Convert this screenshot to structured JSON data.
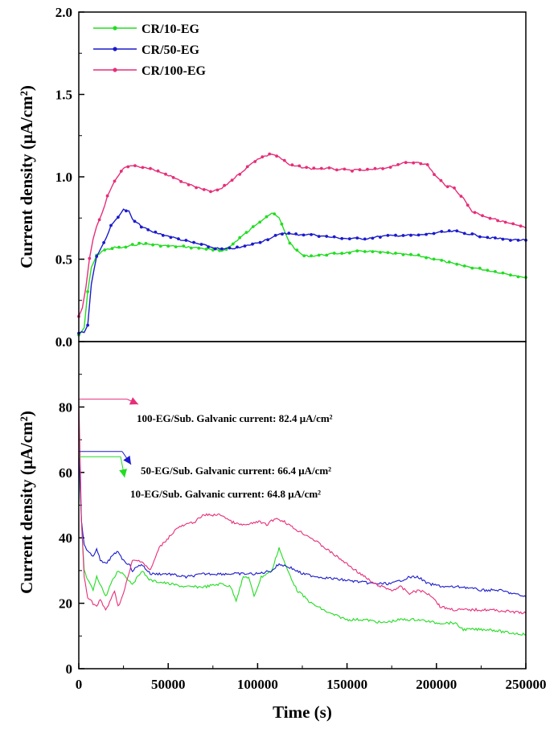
{
  "chart_data": [
    {
      "type": "line",
      "panel": "top",
      "ylabel": "Current density (μA/cm²)",
      "xlabel": "",
      "xlim": [
        0,
        250000
      ],
      "ylim": [
        0,
        2.0
      ],
      "yticks": [
        "0.0",
        "0.5",
        "1.0",
        "1.5",
        "2.0"
      ],
      "yticks_values": [
        0,
        0.5,
        1.0,
        1.5,
        2.0
      ],
      "legend_position": "top-left",
      "series": [
        {
          "name": "CR/10-EG",
          "color": "#22dd22",
          "points": [
            [
              0,
              0.04
            ],
            [
              3000,
              0.08
            ],
            [
              5000,
              0.3
            ],
            [
              7000,
              0.45
            ],
            [
              10000,
              0.52
            ],
            [
              13000,
              0.55
            ],
            [
              16000,
              0.56
            ],
            [
              20000,
              0.57
            ],
            [
              25000,
              0.57
            ],
            [
              30000,
              0.585
            ],
            [
              35000,
              0.595
            ],
            [
              40000,
              0.59
            ],
            [
              50000,
              0.58
            ],
            [
              60000,
              0.575
            ],
            [
              70000,
              0.565
            ],
            [
              75000,
              0.555
            ],
            [
              80000,
              0.55
            ],
            [
              85000,
              0.58
            ],
            [
              90000,
              0.63
            ],
            [
              95000,
              0.67
            ],
            [
              100000,
              0.72
            ],
            [
              105000,
              0.76
            ],
            [
              108000,
              0.78
            ],
            [
              112000,
              0.75
            ],
            [
              115000,
              0.67
            ],
            [
              118000,
              0.6
            ],
            [
              122000,
              0.55
            ],
            [
              126000,
              0.52
            ],
            [
              130000,
              0.52
            ],
            [
              140000,
              0.53
            ],
            [
              150000,
              0.54
            ],
            [
              160000,
              0.55
            ],
            [
              170000,
              0.54
            ],
            [
              180000,
              0.53
            ],
            [
              190000,
              0.52
            ],
            [
              200000,
              0.5
            ],
            [
              210000,
              0.47
            ],
            [
              220000,
              0.45
            ],
            [
              230000,
              0.43
            ],
            [
              240000,
              0.41
            ],
            [
              250000,
              0.39
            ]
          ]
        },
        {
          "name": "CR/50-EG",
          "color": "#1a1acc",
          "points": [
            [
              0,
              0.05
            ],
            [
              3000,
              0.06
            ],
            [
              5000,
              0.1
            ],
            [
              7000,
              0.35
            ],
            [
              10000,
              0.52
            ],
            [
              14000,
              0.6
            ],
            [
              18000,
              0.7
            ],
            [
              22000,
              0.76
            ],
            [
              25000,
              0.8
            ],
            [
              28000,
              0.79
            ],
            [
              30000,
              0.74
            ],
            [
              35000,
              0.7
            ],
            [
              40000,
              0.67
            ],
            [
              50000,
              0.64
            ],
            [
              60000,
              0.61
            ],
            [
              70000,
              0.585
            ],
            [
              75000,
              0.57
            ],
            [
              80000,
              0.56
            ],
            [
              90000,
              0.57
            ],
            [
              100000,
              0.6
            ],
            [
              110000,
              0.64
            ],
            [
              115000,
              0.66
            ],
            [
              120000,
              0.65
            ],
            [
              130000,
              0.65
            ],
            [
              140000,
              0.635
            ],
            [
              150000,
              0.625
            ],
            [
              160000,
              0.625
            ],
            [
              170000,
              0.64
            ],
            [
              180000,
              0.645
            ],
            [
              190000,
              0.645
            ],
            [
              200000,
              0.66
            ],
            [
              210000,
              0.67
            ],
            [
              220000,
              0.65
            ],
            [
              230000,
              0.63
            ],
            [
              240000,
              0.62
            ],
            [
              250000,
              0.615
            ]
          ]
        },
        {
          "name": "CR/100-EG",
          "color": "#e62e7a",
          "points": [
            [
              0,
              0.15
            ],
            [
              2000,
              0.2
            ],
            [
              4000,
              0.33
            ],
            [
              6000,
              0.5
            ],
            [
              8000,
              0.62
            ],
            [
              10000,
              0.7
            ],
            [
              13000,
              0.78
            ],
            [
              16000,
              0.88
            ],
            [
              20000,
              0.97
            ],
            [
              25000,
              1.05
            ],
            [
              30000,
              1.07
            ],
            [
              40000,
              1.05
            ],
            [
              50000,
              1.01
            ],
            [
              60000,
              0.96
            ],
            [
              70000,
              0.92
            ],
            [
              75000,
              0.91
            ],
            [
              80000,
              0.93
            ],
            [
              90000,
              1.02
            ],
            [
              100000,
              1.11
            ],
            [
              108000,
              1.14
            ],
            [
              112000,
              1.12
            ],
            [
              118000,
              1.07
            ],
            [
              130000,
              1.05
            ],
            [
              140000,
              1.05
            ],
            [
              150000,
              1.04
            ],
            [
              160000,
              1.04
            ],
            [
              170000,
              1.05
            ],
            [
              180000,
              1.08
            ],
            [
              190000,
              1.09
            ],
            [
              195000,
              1.07
            ],
            [
              200000,
              1.0
            ],
            [
              205000,
              0.95
            ],
            [
              210000,
              0.93
            ],
            [
              215000,
              0.87
            ],
            [
              220000,
              0.79
            ],
            [
              230000,
              0.75
            ],
            [
              240000,
              0.72
            ],
            [
              250000,
              0.69
            ]
          ]
        }
      ]
    },
    {
      "type": "line",
      "panel": "bottom",
      "ylabel": "Current density (μA/cm²)",
      "xlabel": "Time (s)",
      "xlim": [
        0,
        250000
      ],
      "ylim": [
        0,
        100
      ],
      "yticks": [
        "0",
        "20",
        "40",
        "60",
        "80"
      ],
      "yticks_values": [
        0,
        20,
        40,
        60,
        80
      ],
      "xticks": [
        "0",
        "50000",
        "100000",
        "150000",
        "200000",
        "250000"
      ],
      "xticks_values": [
        0,
        50000,
        100000,
        150000,
        200000,
        250000
      ],
      "series": [
        {
          "name": "10-EG/Sub.",
          "color": "#22dd22",
          "points": [
            [
              0,
              64.8
            ],
            [
              1500,
              45
            ],
            [
              3000,
              30
            ],
            [
              5000,
              27
            ],
            [
              8000,
              24
            ],
            [
              10000,
              28
            ],
            [
              12000,
              26
            ],
            [
              15000,
              22
            ],
            [
              18000,
              26
            ],
            [
              22000,
              30
            ],
            [
              25000,
              29
            ],
            [
              28000,
              27
            ],
            [
              30000,
              26
            ],
            [
              33000,
              28
            ],
            [
              35000,
              30
            ],
            [
              40000,
              27
            ],
            [
              50000,
              26
            ],
            [
              60000,
              25
            ],
            [
              70000,
              25
            ],
            [
              80000,
              26
            ],
            [
              85000,
              25
            ],
            [
              88000,
              21
            ],
            [
              92000,
              28
            ],
            [
              95000,
              28
            ],
            [
              98000,
              22
            ],
            [
              102000,
              28
            ],
            [
              108000,
              30
            ],
            [
              112000,
              37
            ],
            [
              116000,
              31
            ],
            [
              122000,
              24
            ],
            [
              130000,
              20
            ],
            [
              140000,
              17
            ],
            [
              150000,
              15
            ],
            [
              160000,
              15
            ],
            [
              170000,
              14
            ],
            [
              180000,
              15
            ],
            [
              190000,
              15
            ],
            [
              200000,
              14
            ],
            [
              210000,
              14
            ],
            [
              215000,
              12
            ],
            [
              230000,
              12
            ],
            [
              240000,
              11
            ],
            [
              250000,
              10.5
            ]
          ]
        },
        {
          "name": "50-EG/Sub.",
          "color": "#1a1acc",
          "points": [
            [
              0,
              66.4
            ],
            [
              1500,
              45
            ],
            [
              3000,
              38
            ],
            [
              5000,
              36
            ],
            [
              8000,
              34
            ],
            [
              10000,
              37
            ],
            [
              12000,
              33
            ],
            [
              15000,
              32
            ],
            [
              18000,
              34
            ],
            [
              22000,
              36
            ],
            [
              25000,
              33
            ],
            [
              28000,
              32
            ],
            [
              30000,
              30
            ],
            [
              35000,
              32
            ],
            [
              40000,
              29
            ],
            [
              50000,
              29
            ],
            [
              60000,
              28
            ],
            [
              70000,
              29
            ],
            [
              80000,
              29
            ],
            [
              90000,
              29
            ],
            [
              100000,
              29
            ],
            [
              108000,
              30
            ],
            [
              112000,
              32
            ],
            [
              118000,
              31
            ],
            [
              125000,
              29
            ],
            [
              135000,
              28
            ],
            [
              150000,
              27
            ],
            [
              165000,
              26
            ],
            [
              175000,
              26
            ],
            [
              180000,
              27
            ],
            [
              185000,
              28
            ],
            [
              190000,
              28
            ],
            [
              195000,
              26
            ],
            [
              205000,
              25
            ],
            [
              215000,
              25
            ],
            [
              225000,
              24
            ],
            [
              235000,
              24
            ],
            [
              250000,
              22
            ]
          ]
        },
        {
          "name": "100-EG/Sub.",
          "color": "#e62e7a",
          "points": [
            [
              0,
              82.4
            ],
            [
              1500,
              45
            ],
            [
              3000,
              28
            ],
            [
              5000,
              22
            ],
            [
              8000,
              20
            ],
            [
              10000,
              19
            ],
            [
              12000,
              21
            ],
            [
              15000,
              18
            ],
            [
              18000,
              21
            ],
            [
              20000,
              24
            ],
            [
              22000,
              19
            ],
            [
              25000,
              23
            ],
            [
              28000,
              29
            ],
            [
              30000,
              33
            ],
            [
              35000,
              33
            ],
            [
              40000,
              30
            ],
            [
              45000,
              37
            ],
            [
              50000,
              40
            ],
            [
              55000,
              43
            ],
            [
              60000,
              44
            ],
            [
              65000,
              45
            ],
            [
              70000,
              47
            ],
            [
              75000,
              47
            ],
            [
              80000,
              47
            ],
            [
              85000,
              45
            ],
            [
              90000,
              44
            ],
            [
              95000,
              44
            ],
            [
              100000,
              45
            ],
            [
              105000,
              44
            ],
            [
              110000,
              46
            ],
            [
              115000,
              45
            ],
            [
              120000,
              43
            ],
            [
              130000,
              40
            ],
            [
              140000,
              36
            ],
            [
              150000,
              32
            ],
            [
              160000,
              28
            ],
            [
              165000,
              26
            ],
            [
              170000,
              25
            ],
            [
              175000,
              24
            ],
            [
              180000,
              25
            ],
            [
              185000,
              23
            ],
            [
              190000,
              24
            ],
            [
              195000,
              23
            ],
            [
              198000,
              22
            ],
            [
              202000,
              19
            ],
            [
              210000,
              18
            ],
            [
              220000,
              18
            ],
            [
              230000,
              18
            ],
            [
              240000,
              17.5
            ],
            [
              250000,
              17
            ]
          ]
        }
      ],
      "annotations": [
        {
          "series": "100-EG/Sub.",
          "text": "100-EG/Sub. Galvanic current: 82.4 μA/cm²",
          "value": 82.4,
          "color": "#e62e7a"
        },
        {
          "series": "50-EG/Sub.",
          "text": "50-EG/Sub. Galvanic current: 66.4 μA/cm²",
          "value": 66.4,
          "color": "#1a1acc"
        },
        {
          "series": "10-EG/Sub.",
          "text": "10-EG/Sub. Galvanic current: 64.8 μA/cm²",
          "value": 64.8,
          "color": "#22dd22"
        }
      ]
    }
  ]
}
